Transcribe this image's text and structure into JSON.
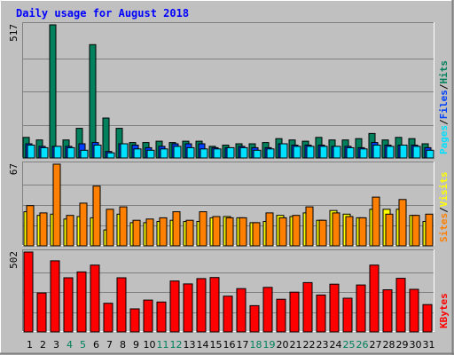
{
  "colors": {
    "hits": "#00805c",
    "files": "#0040ff",
    "pages": "#00e0ff",
    "visits": "#ffff00",
    "sites": "#ff8000",
    "kbytes": "#ff0000",
    "title": "#0000ff",
    "weekday": "#000000",
    "weekend": "#00805c",
    "panel_bg": "#c0c0c0",
    "grid": "#808080"
  },
  "chart_data": {
    "type": "bar",
    "title": "Daily usage for August 2018",
    "days": [
      "1",
      "2",
      "3",
      "4",
      "5",
      "6",
      "7",
      "8",
      "9",
      "10",
      "11",
      "12",
      "13",
      "14",
      "15",
      "16",
      "17",
      "18",
      "19",
      "20",
      "21",
      "22",
      "23",
      "24",
      "25",
      "26",
      "27",
      "28",
      "29",
      "30",
      "31"
    ],
    "weekend_days": [
      "4",
      "5",
      "11",
      "12",
      "18",
      "19",
      "25",
      "26"
    ],
    "panels": [
      {
        "id": "hits",
        "ymax_label": "517",
        "ylim": [
          0,
          517
        ],
        "legend": [
          {
            "label": "Pages",
            "color_key": "pages"
          },
          {
            "sep": "/"
          },
          {
            "label": "Files",
            "color_key": "files"
          },
          {
            "sep": "/"
          },
          {
            "label": "Hits",
            "color_key": "hits"
          }
        ],
        "series": [
          {
            "key": "hits",
            "values": [
              80,
              70,
              517,
              70,
              115,
              440,
              155,
              115,
              60,
              60,
              65,
              60,
              65,
              65,
              45,
              50,
              55,
              55,
              60,
              75,
              70,
              65,
              80,
              70,
              70,
              75,
              95,
              70,
              80,
              75,
              55
            ]
          },
          {
            "key": "files",
            "values": [
              55,
              45,
              45,
              45,
              55,
              60,
              25,
              55,
              50,
              40,
              45,
              55,
              55,
              55,
              40,
              40,
              45,
              40,
              40,
              55,
              50,
              50,
              50,
              45,
              45,
              40,
              60,
              50,
              50,
              50,
              40
            ]
          },
          {
            "key": "pages",
            "values": [
              50,
              40,
              45,
              40,
              30,
              50,
              20,
              55,
              35,
              30,
              35,
              45,
              40,
              35,
              35,
              40,
              40,
              30,
              35,
              55,
              45,
              45,
              45,
              45,
              40,
              35,
              50,
              45,
              50,
              45,
              30
            ]
          }
        ]
      },
      {
        "id": "visits",
        "ymax_label": "67",
        "ylim": [
          0,
          67
        ],
        "legend": [
          {
            "label": "Sites",
            "color_key": "sites"
          },
          {
            "sep": "/"
          },
          {
            "label": "Visits",
            "color_key": "visits"
          }
        ],
        "series": [
          {
            "key": "visits",
            "values": [
              28,
              25,
              26,
              22,
              24,
              23,
              13,
              26,
              19,
              19,
              20,
              21,
              20,
              20,
              23,
              24,
              23,
              19,
              20,
              25,
              24,
              27,
              21,
              29,
              26,
              23,
              30,
              30,
              30,
              25,
              20
            ]
          },
          {
            "key": "sites",
            "values": [
              33,
              27,
              67,
              25,
              35,
              49,
              30,
              32,
              21,
              22,
              23,
              28,
              21,
              28,
              24,
              23,
              23,
              19,
              27,
              23,
              25,
              32,
              21,
              27,
              24,
              23,
              40,
              26,
              38,
              25,
              26
            ]
          }
        ]
      },
      {
        "id": "kbytes",
        "ymax_label": "502",
        "ylim": [
          0,
          502
        ],
        "legend": [
          {
            "label": "KBytes",
            "color_key": "kbytes"
          }
        ],
        "series": [
          {
            "key": "kbytes",
            "values": [
              502,
              245,
              447,
              340,
              377,
              420,
              180,
              340,
              145,
              200,
              188,
              320,
              302,
              335,
              342,
              225,
              272,
              165,
              280,
              205,
              250,
              310,
              232,
              300,
              212,
              295,
              420,
              265,
              337,
              268,
              172
            ]
          }
        ]
      }
    ]
  }
}
